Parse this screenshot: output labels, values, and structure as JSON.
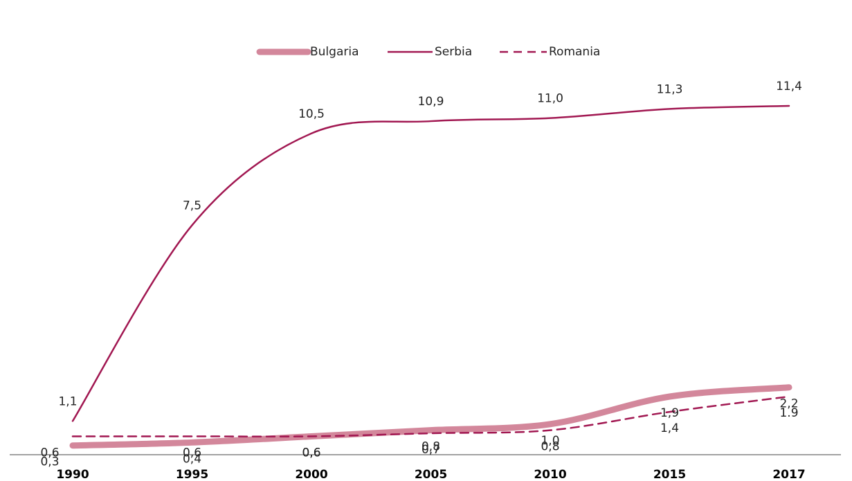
{
  "chart_data": {
    "type": "line",
    "categories": [
      "1990",
      "1995",
      "2000",
      "2005",
      "2010",
      "2015",
      "2017"
    ],
    "series": [
      {
        "name": "Bulgaria",
        "color": "#d3879b",
        "line_width": 9,
        "dash": false,
        "values": [
          0.3,
          0.4,
          0.6,
          0.8,
          1.0,
          1.9,
          2.2
        ],
        "value_labels": [
          "0,3",
          "0,4",
          "0,6",
          "0,8",
          "1,0",
          "1,9",
          "2,2"
        ]
      },
      {
        "name": "Serbia",
        "color": "#a11751",
        "line_width": 2.5,
        "dash": false,
        "values": [
          1.1,
          7.5,
          10.5,
          10.9,
          11.0,
          11.3,
          11.4
        ],
        "value_labels": [
          "1,1",
          "7,5",
          "10,5",
          "10,9",
          "11,0",
          "11,3",
          "11,4"
        ]
      },
      {
        "name": "Romania",
        "color": "#a11751",
        "line_width": 2.5,
        "dash": true,
        "values": [
          0.6,
          0.6,
          0.6,
          0.7,
          0.8,
          1.4,
          1.9
        ],
        "value_labels": [
          "0,6",
          "0,6",
          "0,6",
          "0,7",
          "0,8",
          "1,4",
          "1.9"
        ]
      }
    ],
    "ylim": [
      0,
      14
    ],
    "legend": "top"
  }
}
